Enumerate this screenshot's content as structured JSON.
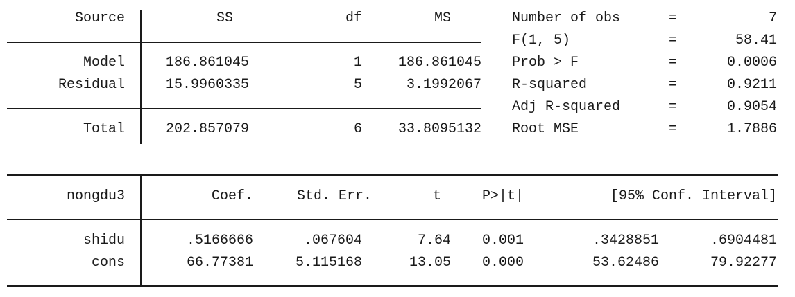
{
  "anova": {
    "headers": {
      "source": "Source",
      "ss": "SS",
      "df": "df",
      "ms": "MS"
    },
    "rows": [
      {
        "source": "Model",
        "ss": "186.861045",
        "df": "1",
        "ms": "186.861045"
      },
      {
        "source": "Residual",
        "ss": "15.9960335",
        "df": "5",
        "ms": "3.1992067"
      }
    ],
    "total": {
      "source": "Total",
      "ss": "202.857079",
      "df": "6",
      "ms": "33.8095132"
    }
  },
  "stats": [
    {
      "label": "Number of obs",
      "eq": "=",
      "value": "7"
    },
    {
      "label": "F(1, 5)",
      "eq": "=",
      "value": "58.41"
    },
    {
      "label": "Prob > F",
      "eq": "=",
      "value": "0.0006"
    },
    {
      "label": "R-squared",
      "eq": "=",
      "value": "0.9211"
    },
    {
      "label": "Adj R-squared",
      "eq": "=",
      "value": "0.9054"
    },
    {
      "label": "Root MSE",
      "eq": "=",
      "value": "1.7886"
    }
  ],
  "coef": {
    "headers": {
      "dep": "nongdu3",
      "coef": "Coef.",
      "se": "Std. Err.",
      "t": "t",
      "p": "P>|t|",
      "ci": "[95% Conf. Interval]"
    },
    "rows": [
      {
        "var": "shidu",
        "coef": ".5166666",
        "se": ".067604",
        "t": "7.64",
        "p": "0.001",
        "lo": ".3428851",
        "hi": ".6904481"
      },
      {
        "var": "_cons",
        "coef": "66.77381",
        "se": "5.115168",
        "t": "13.05",
        "p": "0.000",
        "lo": "53.62486",
        "hi": "79.92277"
      }
    ]
  }
}
